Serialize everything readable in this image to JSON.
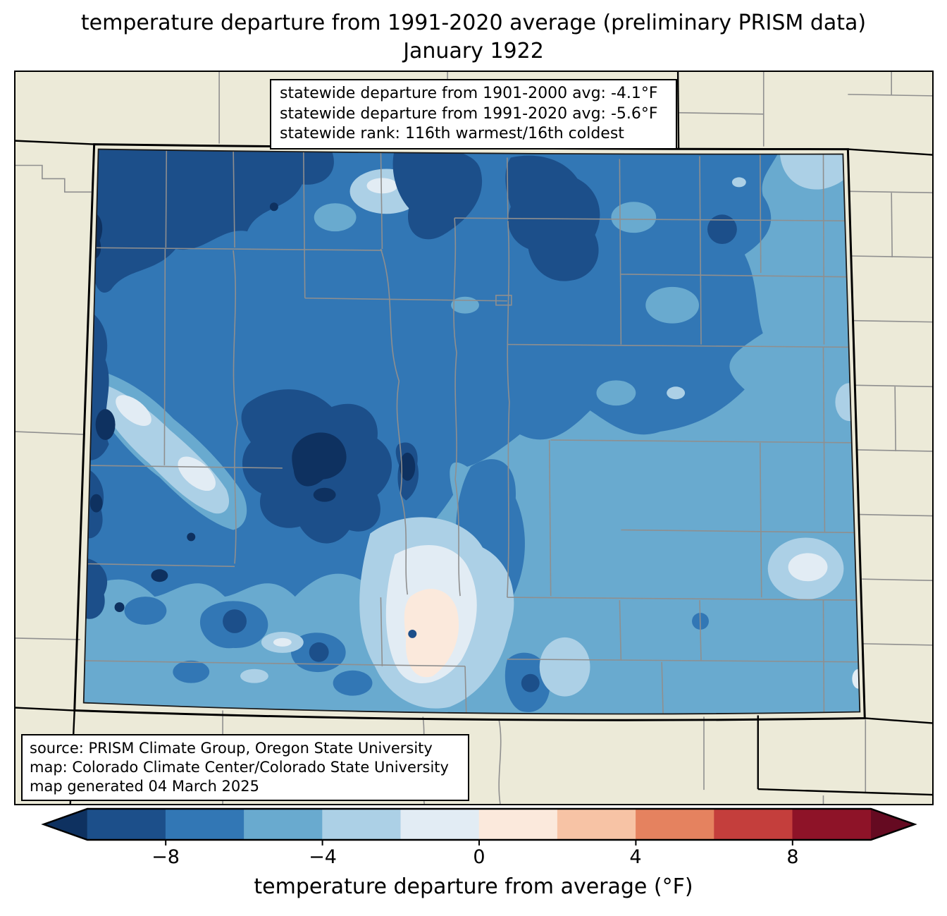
{
  "title": {
    "line1": "temperature departure from 1991-2020 average (preliminary PRISM data)",
    "line2": "January 1922"
  },
  "stats_box": {
    "line1": "statewide departure from 1901-2000 avg: -4.1°F",
    "line2": "statewide departure from 1991-2020 avg: -5.6°F",
    "line3": "statewide rank: 116th warmest/16th coldest"
  },
  "source_box": {
    "line1": "source: PRISM Climate Group, Oregon State University",
    "line2": "map: Colorado Climate Center/Colorado State University",
    "line3": "map generated 04 March 2025"
  },
  "colorbar": {
    "label": "temperature departure from average (°F)",
    "ticks": [
      "−8",
      "−4",
      "0",
      "4",
      "8"
    ],
    "tick_values": [
      -8,
      -4,
      0,
      4,
      8
    ],
    "range": [
      -10,
      10
    ],
    "bin_width": 2,
    "extend": "both",
    "under_color": "#0E3160",
    "over_color": "#650A21",
    "segments": [
      "#1C4F8A",
      "#3277B5",
      "#69AACF",
      "#ACD0E6",
      "#E2ECF4",
      "#FBE9DC",
      "#F7C3A5",
      "#E5825F",
      "#C43E3C",
      "#8E1328"
    ]
  },
  "map": {
    "region": "Colorado",
    "palette": {
      "under": "#0E3160",
      "seg1": "#1C4F8A",
      "seg2": "#3277B5",
      "seg3": "#69AACF",
      "seg4": "#ACD0E6",
      "seg5": "#E2ECF4",
      "seg6": "#FBE9DC",
      "over": "#650A21"
    },
    "colors": {
      "land": "#ECEAD8",
      "county_line": "#8F8F8F",
      "state_border": "#000000"
    }
  },
  "chart_data": {
    "type": "choropleth_map",
    "region": "Colorado",
    "variable": "temperature departure from 1991-2020 average (°F)",
    "period": "January 1922",
    "statewide_departure_from_1901_2000_avg_F": -4.1,
    "statewide_departure_from_1991_2020_avg_F": -5.6,
    "statewide_rank": "116th warmest/16th coldest",
    "colorbar_range_F": [
      -10,
      10
    ],
    "colorbar_bin_width_F": 2,
    "colorbar_ticks_F": [
      -8,
      -4,
      0,
      4,
      8
    ],
    "dominant_anomaly": "below average (blues, -2 to -10 F) over most of the state; small near/above-average pocket (0 to +2 F) in the San Luis Valley"
  }
}
